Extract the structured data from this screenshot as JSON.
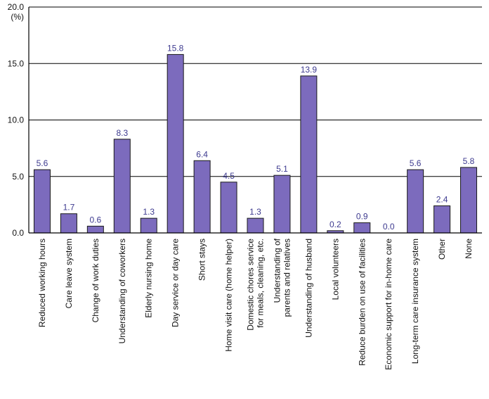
{
  "chart_data": {
    "type": "bar",
    "title": "",
    "xlabel": "",
    "ylabel": "(%)",
    "ylim": [
      0,
      20
    ],
    "yticks": [
      "0.0",
      "5.0",
      "10.0",
      "15.0",
      "20.0"
    ],
    "grid": true,
    "bar_color": "#7c6bbd",
    "label_color": "#3d3a8f",
    "categories": [
      "Reduced working hours",
      "Care leave system",
      "Change of work duties",
      "Understanding of coworkers",
      "Elderly nursing home",
      "Day service or day care",
      "Short stays",
      "Home visit care (home helper)",
      "Domestic chores service\nfor meals, cleaning, etc.",
      "Understanding of\nparents and relatives",
      "Understanding of husband",
      "Local volunteers",
      "Reduce burden on use of facilities",
      "Economic support for in-home care",
      "Long-term care insurance system",
      "Other",
      "None"
    ],
    "values": [
      5.6,
      1.7,
      0.6,
      8.3,
      1.3,
      15.8,
      6.4,
      4.5,
      1.3,
      5.1,
      13.9,
      0.2,
      0.9,
      0.0,
      5.6,
      2.4,
      5.8
    ],
    "value_labels": [
      "5.6",
      "1.7",
      "0.6",
      "8.3",
      "1.3",
      "15.8",
      "6.4",
      "4.5",
      "1.3",
      "5.1",
      "13.9",
      "0.2",
      "0.9",
      "0.0",
      "5.6",
      "2.4",
      "5.8"
    ]
  }
}
